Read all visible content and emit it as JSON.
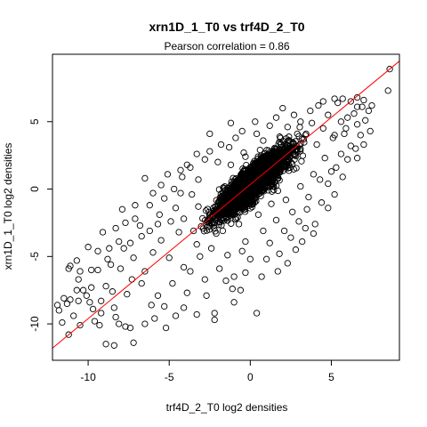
{
  "chart_data": {
    "type": "scatter",
    "title": "xrn1D_1_T0 vs trf4D_2_T0",
    "subtitle": "Pearson correlation =  0.86",
    "xlabel": "trf4D_2_T0 log2 densities",
    "ylabel": "xrn1D_1_T0 log2 densities",
    "xlim": [
      -12.2,
      9.2
    ],
    "ylim": [
      -12.7,
      10.0
    ],
    "xticks": [
      -10,
      -5,
      0,
      5
    ],
    "yticks": [
      -10,
      -5,
      0,
      5
    ],
    "xtick_labels": [
      "-10",
      "-5",
      "0",
      "5"
    ],
    "ytick_labels": [
      "-10",
      "-5",
      "0",
      "5"
    ],
    "grid": false,
    "legend": "none",
    "point_style": "open-circle",
    "point_color": "#000000",
    "regression_line": {
      "color": "#ff0000",
      "slope": 0.995,
      "intercept": 0.34
    },
    "series": [
      {
        "points": [
          [
            8.6,
            8.9
          ],
          [
            8.5,
            7.3
          ],
          [
            7.0,
            6.6
          ],
          [
            6.6,
            6.8
          ],
          [
            6.2,
            6.5
          ],
          [
            5.7,
            6.7
          ],
          [
            5.4,
            6.4
          ],
          [
            5.6,
            5.0
          ],
          [
            6.9,
            6.1
          ],
          [
            5.2,
            4.0
          ],
          [
            6.0,
            5.3
          ],
          [
            7.3,
            5.8
          ],
          [
            6.6,
            4.8
          ],
          [
            5.9,
            4.5
          ],
          [
            4.8,
            5.5
          ],
          [
            4.2,
            6.2
          ],
          [
            3.7,
            5.8
          ],
          [
            4.5,
            4.5
          ],
          [
            3.8,
            4.9
          ],
          [
            3.1,
            5.0
          ],
          [
            1.6,
            5.3
          ],
          [
            2.3,
            4.6
          ],
          [
            0.4,
            4.1
          ],
          [
            -0.5,
            4.3
          ],
          [
            -0.3,
            2.4
          ],
          [
            -1.3,
            3.1
          ],
          [
            -2.0,
            2.0
          ],
          [
            -2.8,
            2.2
          ],
          [
            -3.9,
            1.8
          ],
          [
            -4.3,
            1.4
          ],
          [
            -4.3,
            -0.3
          ],
          [
            -5.1,
            1.1
          ],
          [
            -6.5,
            0.8
          ],
          [
            -5.3,
            -0.7
          ],
          [
            -6.2,
            -1.2
          ],
          [
            -7.1,
            -2.2
          ],
          [
            -7.7,
            -2.5
          ],
          [
            -6.2,
            -3.1
          ],
          [
            -6.7,
            -3.5
          ],
          [
            -7.8,
            -4.4
          ],
          [
            -8.1,
            -3.9
          ],
          [
            -8.7,
            -4.4
          ],
          [
            -8.8,
            -5.2
          ],
          [
            -9.4,
            -4.6
          ],
          [
            -9.4,
            -6.0
          ],
          [
            -9.8,
            -6.0
          ],
          [
            -10.5,
            -6.1
          ],
          [
            -10.7,
            -5.3
          ],
          [
            -11.1,
            -5.7
          ],
          [
            -11.2,
            -5.9
          ],
          [
            -10.6,
            -6.7
          ],
          [
            -10.7,
            -7.5
          ],
          [
            -10.3,
            -7.5
          ],
          [
            -10.1,
            -7.9
          ],
          [
            -11.1,
            -8.2
          ],
          [
            -10.6,
            -8.3
          ],
          [
            -11.5,
            -8.1
          ],
          [
            -11.3,
            -8.5
          ],
          [
            -9.9,
            -8.4
          ],
          [
            -9.2,
            -8.3
          ],
          [
            -8.4,
            -8.8
          ],
          [
            -8.3,
            -9.5
          ],
          [
            -8.1,
            -10.0
          ],
          [
            -9.2,
            -9.2
          ],
          [
            -9.6,
            -9.8
          ],
          [
            -10.5,
            -10.1
          ],
          [
            -11.2,
            -10.8
          ],
          [
            -11.9,
            -8.6
          ],
          [
            -11.8,
            -9.0
          ],
          [
            -9.3,
            -10.1
          ],
          [
            -8.9,
            -11.5
          ],
          [
            -8.4,
            -11.6
          ],
          [
            -7.7,
            -10.2
          ],
          [
            -7.4,
            -10.3
          ],
          [
            -7.2,
            -11.4
          ],
          [
            -6.5,
            -10.0
          ],
          [
            -5.9,
            -9.6
          ],
          [
            -4.6,
            -9.4
          ],
          [
            -5.2,
            -10.3
          ],
          [
            -5.7,
            -7.9
          ],
          [
            -3.9,
            -7.7
          ],
          [
            -2.7,
            -7.9
          ],
          [
            -2.2,
            -9.7
          ],
          [
            -2.2,
            -9.2
          ],
          [
            0.4,
            -9.2
          ],
          [
            -1.0,
            -8.4
          ],
          [
            -1.1,
            -7.4
          ],
          [
            -0.6,
            -7.5
          ],
          [
            -0.3,
            -6.2
          ],
          [
            0.7,
            -6.5
          ],
          [
            1.7,
            -6.1
          ],
          [
            1.0,
            -5.2
          ],
          [
            1.2,
            -4.0
          ],
          [
            2.3,
            -5.5
          ],
          [
            2.8,
            -4.5
          ],
          [
            2.1,
            -3.1
          ],
          [
            3.2,
            -3.9
          ],
          [
            3.4,
            -2.9
          ],
          [
            4.0,
            -2.6
          ],
          [
            3.5,
            -1.5
          ],
          [
            4.4,
            -1.0
          ],
          [
            4.8,
            0.4
          ],
          [
            5.0,
            1.3
          ],
          [
            5.6,
            2.6
          ],
          [
            6.2,
            3.2
          ],
          [
            6.8,
            4.0
          ],
          [
            7.1,
            5.1
          ],
          [
            -2.1,
            -3.3
          ],
          [
            -3.1,
            -5.0
          ],
          [
            -3.7,
            -6.1
          ],
          [
            -4.8,
            -7.0
          ],
          [
            -5.0,
            -5.1
          ],
          [
            -6.5,
            -6.1
          ],
          [
            -6.7,
            -7.0
          ],
          [
            -7.3,
            -6.7
          ],
          [
            -8.0,
            -5.9
          ],
          [
            -7.6,
            -7.8
          ],
          [
            -6.1,
            -8.6
          ],
          [
            -5.3,
            -8.7
          ],
          [
            -4.1,
            -8.8
          ],
          [
            -3.3,
            -9.3
          ],
          [
            -1.9,
            -5.9
          ],
          [
            -1.0,
            -6.5
          ],
          [
            0.0,
            -5.2
          ],
          [
            -8.9,
            -7.2
          ],
          [
            -9.8,
            -7.3
          ],
          [
            -3.7,
            1.6
          ],
          [
            -3.2,
            0.7
          ],
          [
            -4.7,
            0.0
          ],
          [
            -5.6,
            -1.9
          ],
          [
            -4.9,
            -2.4
          ],
          [
            -4.4,
            -3.2
          ],
          [
            -3.3,
            -4.1
          ],
          [
            -2.4,
            -4.4
          ],
          [
            -1.4,
            -4.9
          ],
          [
            -0.3,
            -3.9
          ],
          [
            0.8,
            -3.1
          ],
          [
            1.6,
            -2.3
          ],
          [
            2.6,
            -1.7
          ],
          [
            3.6,
            -0.6
          ],
          [
            4.3,
            0.7
          ],
          [
            5.3,
            1.6
          ],
          [
            6.0,
            2.2
          ],
          [
            6.5,
            3.0
          ],
          [
            2.9,
            4.1
          ],
          [
            1.8,
            3.5
          ],
          [
            0.8,
            3.6
          ],
          [
            -0.9,
            3.8
          ],
          [
            -1.8,
            3.3
          ],
          [
            -2.5,
            2.8
          ],
          [
            -3.3,
            2.6
          ],
          [
            1.2,
            4.7
          ],
          [
            2.7,
            5.5
          ],
          [
            3.4,
            4.0
          ],
          [
            4.1,
            3.3
          ],
          [
            5.1,
            3.8
          ],
          [
            5.8,
            4.1
          ],
          [
            6.4,
            5.6
          ],
          [
            7.5,
            6.2
          ],
          [
            6.6,
            6.1
          ],
          [
            4.5,
            6.5
          ],
          [
            5.2,
            6.7
          ],
          [
            2.0,
            6.0
          ],
          [
            0.3,
            5.0
          ],
          [
            -1.2,
            4.9
          ],
          [
            -2.5,
            4.1
          ],
          [
            -6.0,
            -0.3
          ],
          [
            -7.1,
            -1.2
          ],
          [
            -7.9,
            -1.5
          ],
          [
            -8.3,
            -2.9
          ],
          [
            -9.1,
            -3.2
          ],
          [
            -10.0,
            -4.3
          ],
          [
            -8.6,
            -5.6
          ],
          [
            -7.2,
            -5.1
          ],
          [
            -6.0,
            -4.7
          ],
          [
            -5.5,
            -3.8
          ],
          [
            -6.8,
            -2.7
          ],
          [
            -7.4,
            -4.0
          ],
          [
            -8.5,
            -7.6
          ],
          [
            -9.7,
            -8.9
          ],
          [
            -10.9,
            -9.4
          ],
          [
            -11.6,
            -9.9
          ],
          [
            -4.1,
            -5.8
          ],
          [
            -2.8,
            -6.7
          ],
          [
            -1.5,
            -6.8
          ],
          [
            -0.5,
            -4.6
          ],
          [
            1.8,
            -4.8
          ],
          [
            2.5,
            -3.6
          ],
          [
            3.9,
            -3.3
          ],
          [
            3.0,
            -2.4
          ],
          [
            4.8,
            -1.4
          ],
          [
            5.2,
            -0.4
          ],
          [
            5.7,
            0.9
          ],
          [
            6.6,
            2.3
          ],
          [
            7.0,
            3.3
          ],
          [
            7.4,
            4.3
          ],
          [
            -3.2,
            -1.3
          ],
          [
            -2.6,
            -2.4
          ],
          [
            -1.7,
            -3.1
          ],
          [
            -0.7,
            -2.6
          ],
          [
            0.5,
            -1.9
          ],
          [
            1.3,
            -1.1
          ],
          [
            2.2,
            -0.8
          ],
          [
            3.1,
            0.2
          ],
          [
            3.9,
            1.1
          ],
          [
            4.6,
            2.3
          ],
          [
            -1.2,
            1.8
          ],
          [
            -0.4,
            2.7
          ],
          [
            0.6,
            2.9
          ],
          [
            1.7,
            2.8
          ],
          [
            2.4,
            3.6
          ],
          [
            -5.5,
            0.3
          ],
          [
            -4.2,
            0.9
          ],
          [
            -3.6,
            -0.4
          ],
          [
            -4.6,
            -1.4
          ],
          [
            -5.7,
            -2.6
          ],
          [
            -4.1,
            -2.2
          ],
          [
            -3.5,
            -3.1
          ]
        ]
      }
    ]
  }
}
